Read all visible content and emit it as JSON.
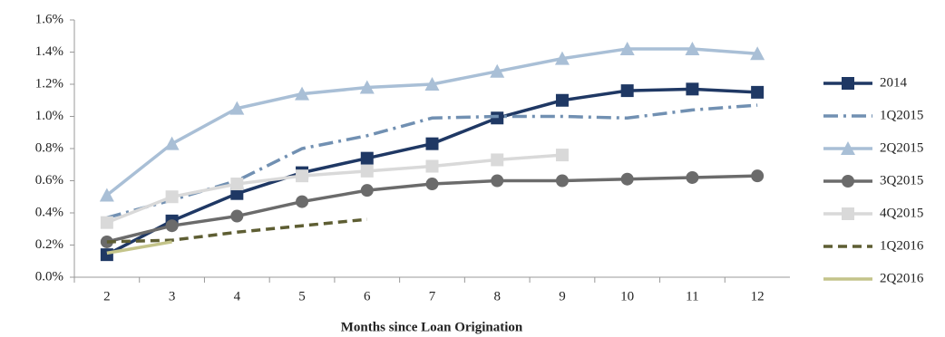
{
  "chart_data": {
    "type": "line",
    "x_label": "Months since Loan Origination",
    "x": [
      2,
      3,
      4,
      5,
      6,
      7,
      8,
      9,
      10,
      11,
      12
    ],
    "xlim": [
      1.5,
      12.5
    ],
    "xticks": [
      2,
      3,
      4,
      5,
      6,
      7,
      8,
      9,
      10,
      11,
      12
    ],
    "ylim": [
      0,
      1.6
    ],
    "yticks": [
      {
        "value": 0,
        "label": "0.0%"
      },
      {
        "value": 0.2,
        "label": "0.2%"
      },
      {
        "value": 0.4,
        "label": "0.4%"
      },
      {
        "value": 0.6,
        "label": "0.6%"
      },
      {
        "value": 0.8,
        "label": "0.8%"
      },
      {
        "value": 1.0,
        "label": "1.0%"
      },
      {
        "value": 1.2,
        "label": "1.2%"
      },
      {
        "value": 1.4,
        "label": "1.4%"
      },
      {
        "value": 1.6,
        "label": "1.6%"
      }
    ],
    "grid": false,
    "legend": "right",
    "series": [
      {
        "name": "2014",
        "color": "#1f3864",
        "marker": "square",
        "dash": "solid",
        "values": [
          0.14,
          0.35,
          0.52,
          0.65,
          0.74,
          0.83,
          0.99,
          1.1,
          1.16,
          1.17,
          1.15
        ]
      },
      {
        "name": "1Q2015",
        "color": "#7190b2",
        "marker": "none",
        "dash": "dashdot",
        "values": [
          0.37,
          0.48,
          0.6,
          0.8,
          0.88,
          0.99,
          1.0,
          1.0,
          0.99,
          1.04,
          1.07
        ]
      },
      {
        "name": "2Q2015",
        "color": "#a9bfd6",
        "marker": "triangle",
        "dash": "solid",
        "values": [
          0.51,
          0.83,
          1.05,
          1.14,
          1.18,
          1.2,
          1.28,
          1.36,
          1.42,
          1.42,
          1.39
        ]
      },
      {
        "name": "3Q2015",
        "color": "#6b6b6b",
        "marker": "circle",
        "dash": "solid",
        "values": [
          0.22,
          0.32,
          0.38,
          0.47,
          0.54,
          0.58,
          0.6,
          0.6,
          0.61,
          0.62,
          0.63
        ]
      },
      {
        "name": "4Q2015",
        "color": "#d9d9d9",
        "marker": "square",
        "dash": "solid",
        "values": [
          0.34,
          0.5,
          0.58,
          0.63,
          0.66,
          0.69,
          0.73,
          0.76,
          null,
          null,
          null
        ]
      },
      {
        "name": "1Q2016",
        "color": "#5e5e33",
        "marker": "none",
        "dash": "dash",
        "values": [
          0.22,
          0.23,
          0.28,
          0.32,
          0.36,
          null,
          null,
          null,
          null,
          null,
          null
        ]
      },
      {
        "name": "2Q2016",
        "color": "#c4c48a",
        "marker": "none",
        "dash": "solid",
        "values": [
          0.15,
          0.22,
          null,
          null,
          null,
          null,
          null,
          null,
          null,
          null,
          null
        ]
      }
    ]
  }
}
